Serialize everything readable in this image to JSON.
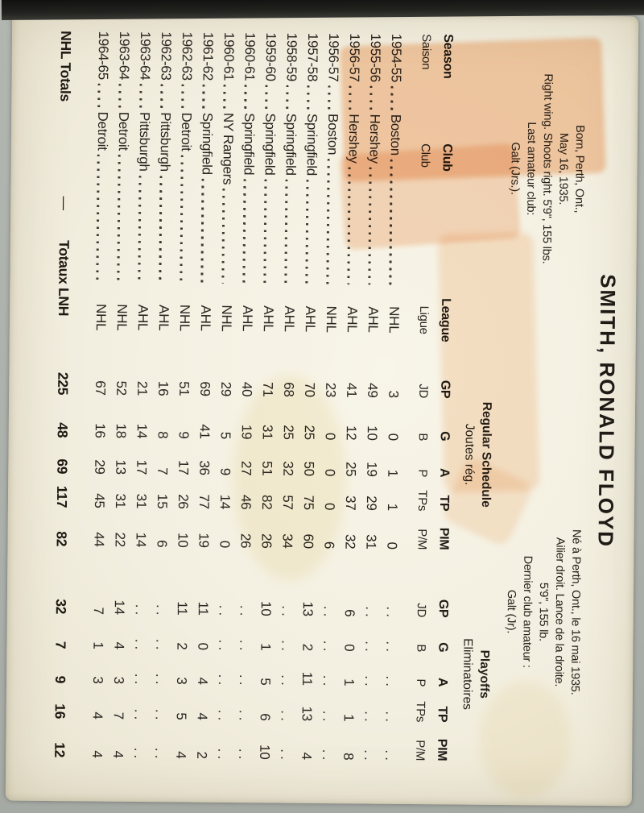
{
  "card": {
    "player_name": "SMITH, RONALD FLOYD",
    "bio_en": [
      "Born, Perth, Ont.,",
      "May 16, 1935.",
      "Right wing. Shoots right. 5'9\", 155 lbs.",
      "Last amateur club:",
      "Galt (Jrs.)."
    ],
    "bio_fr": [
      "Né à Perth, Ont., le 16 mai 1935.",
      "Ailier droit. Lance de la droite.",
      "5'9\", 155 lb.",
      "Dernier club amateur :",
      "Galt (Jr)."
    ],
    "table": {
      "group_regular_en": "Regular Schedule",
      "group_regular_fr": "Joutes rég.",
      "group_playoffs_en": "Playoffs",
      "group_playoffs_fr": "Eliminatoires",
      "headers_en": [
        "Season",
        "Club",
        "League",
        "GP",
        "G",
        "A",
        "TP",
        "PIM",
        "GP",
        "G",
        "A",
        "TP",
        "PIM"
      ],
      "headers_fr": [
        "Saison",
        "Club",
        "Ligue",
        "JD",
        "B",
        "P",
        "TPs",
        "P/M",
        "JD",
        "B",
        "P",
        "TPs",
        "P/M"
      ],
      "rows": [
        {
          "season": "1954-55",
          "club": "Boston",
          "league": "NHL",
          "stats": [
            "3",
            "0",
            "1",
            "1",
            "0"
          ],
          "playoffs": [
            ". .",
            ". .",
            ". .",
            ". .",
            ". ."
          ]
        },
        {
          "season": "1955-56",
          "club": "Hershey",
          "league": "AHL",
          "stats": [
            "49",
            "10",
            "19",
            "29",
            "31"
          ],
          "playoffs": [
            ". .",
            ". .",
            ". .",
            ". .",
            ". ."
          ]
        },
        {
          "season": "1956-57",
          "club": "Hershey",
          "league": "AHL",
          "stats": [
            "41",
            "12",
            "25",
            "37",
            "32"
          ],
          "playoffs": [
            "6",
            "0",
            "1",
            "1",
            "8"
          ]
        },
        {
          "season": "1956-57",
          "club": "Boston",
          "league": "NHL",
          "stats": [
            "23",
            "0",
            "0",
            "0",
            "6"
          ],
          "playoffs": [
            ". .",
            ". .",
            ". .",
            ". .",
            ". ."
          ]
        },
        {
          "season": "1957-58",
          "club": "Springfield",
          "league": "AHL",
          "stats": [
            "70",
            "25",
            "50",
            "75",
            "60"
          ],
          "playoffs": [
            "13",
            "2",
            "11",
            "13",
            "4"
          ]
        },
        {
          "season": "1958-59",
          "club": "Springfield",
          "league": "AHL",
          "stats": [
            "68",
            "25",
            "32",
            "57",
            "34"
          ],
          "playoffs": [
            ". .",
            ". .",
            ". .",
            ". .",
            ". ."
          ]
        },
        {
          "season": "1959-60",
          "club": "Springfield",
          "league": "AHL",
          "stats": [
            "71",
            "31",
            "51",
            "82",
            "26"
          ],
          "playoffs": [
            "10",
            "1",
            "5",
            "6",
            "10"
          ]
        },
        {
          "season": "1960-61",
          "club": "Springfield",
          "league": "AHL",
          "stats": [
            "40",
            "19",
            "27",
            "46",
            "26"
          ],
          "playoffs": [
            ". .",
            ". .",
            ". .",
            ". .",
            ". ."
          ]
        },
        {
          "season": "1960-61",
          "club": "NY Rangers",
          "league": "NHL",
          "stats": [
            "29",
            "5",
            "9",
            "14",
            "0"
          ],
          "playoffs": [
            ". .",
            ". .",
            ". .",
            ". .",
            ". ."
          ]
        },
        {
          "season": "1961-62",
          "club": "Springfield",
          "league": "AHL",
          "stats": [
            "69",
            "41",
            "36",
            "77",
            "19"
          ],
          "playoffs": [
            "11",
            "0",
            "4",
            "4",
            "2"
          ]
        },
        {
          "season": "1962-63",
          "club": "Detroit",
          "league": "NHL",
          "stats": [
            "51",
            "9",
            "17",
            "26",
            "10"
          ],
          "playoffs": [
            "11",
            "2",
            "3",
            "5",
            "4"
          ]
        },
        {
          "season": "1962-63",
          "club": "Pittsburgh",
          "league": "AHL",
          "stats": [
            "16",
            "8",
            "7",
            "15",
            "6"
          ],
          "playoffs": [
            ". .",
            ". .",
            ". .",
            ". .",
            ". ."
          ]
        },
        {
          "season": "1963-64",
          "club": "Pittsburgh",
          "league": "AHL",
          "stats": [
            "21",
            "14",
            "17",
            "31",
            "14"
          ],
          "playoffs": [
            ". .",
            ". .",
            ". .",
            ". .",
            ". ."
          ]
        },
        {
          "season": "1963-64",
          "club": "Detroit",
          "league": "NHL",
          "stats": [
            "52",
            "18",
            "13",
            "31",
            "22"
          ],
          "playoffs": [
            "14",
            "4",
            "3",
            "7",
            "4"
          ]
        },
        {
          "season": "1964-65",
          "club": "Detroit",
          "league": "NHL",
          "stats": [
            "67",
            "16",
            "29",
            "45",
            "44"
          ],
          "playoffs": [
            "7",
            "1",
            "3",
            "4",
            "4"
          ]
        }
      ],
      "totals": {
        "label_en": "NHL Totals",
        "dash": "—",
        "label_fr": "Totaux LNH",
        "stats": [
          "225",
          "48",
          "69",
          "117",
          "82"
        ],
        "playoffs": [
          "32",
          "7",
          "9",
          "16",
          "12"
        ]
      }
    }
  }
}
